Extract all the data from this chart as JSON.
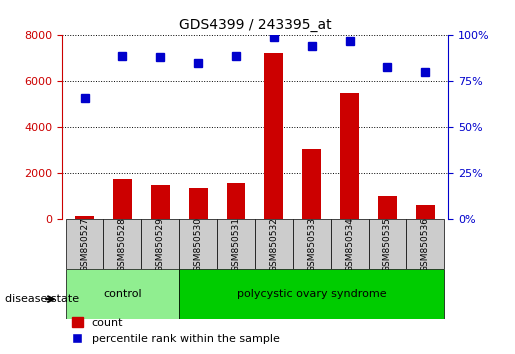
{
  "title": "GDS4399 / 243395_at",
  "samples": [
    "GSM850527",
    "GSM850528",
    "GSM850529",
    "GSM850530",
    "GSM850531",
    "GSM850532",
    "GSM850533",
    "GSM850534",
    "GSM850535",
    "GSM850536"
  ],
  "counts": [
    150,
    1750,
    1500,
    1350,
    1600,
    7250,
    3050,
    5500,
    1000,
    650
  ],
  "percentiles": [
    66,
    89,
    88,
    85,
    89,
    99,
    94,
    97,
    83,
    80
  ],
  "ylim_left": [
    0,
    8000
  ],
  "ylim_right": [
    0,
    100
  ],
  "yticks_left": [
    0,
    2000,
    4000,
    6000,
    8000
  ],
  "yticks_right": [
    0,
    25,
    50,
    75,
    100
  ],
  "bar_color": "#cc0000",
  "dot_color": "#0000cc",
  "grid_color": "#000000",
  "control_indices": [
    0,
    1,
    2
  ],
  "pcos_indices": [
    3,
    4,
    5,
    6,
    7,
    8,
    9
  ],
  "control_label": "control",
  "pcos_label": "polycystic ovary syndrome",
  "control_color": "#90ee90",
  "pcos_color": "#00cc00",
  "sample_bg_color": "#cccccc",
  "disease_state_label": "disease state",
  "legend_count_label": "count",
  "legend_pct_label": "percentile rank within the sample"
}
